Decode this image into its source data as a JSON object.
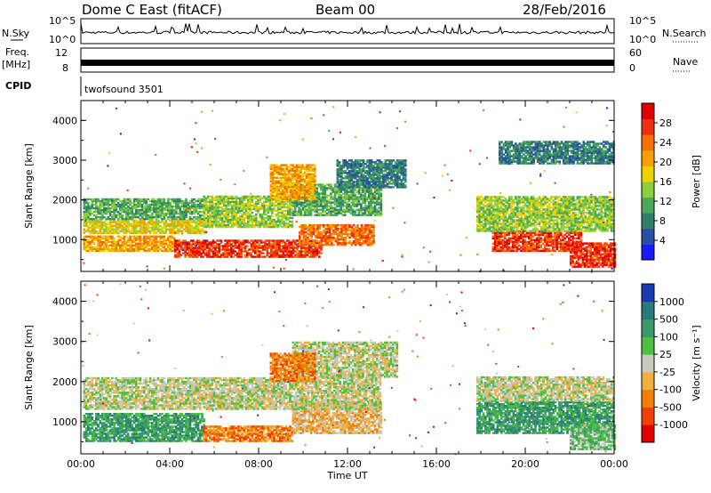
{
  "header": {
    "station": "Dome C East (fitACF)",
    "beam": "Beam 00",
    "date": "28/Feb/2016"
  },
  "strips": {
    "nsky": {
      "label": "N.Sky",
      "top": "10^5",
      "bottom": "10^0"
    },
    "nsearch": {
      "label": "N.Search",
      "top": "10^5",
      "bottom": "10^0"
    },
    "freq": {
      "label_line1": "Freq.",
      "label_line2": "[MHz]",
      "top": "12",
      "bottom": "8"
    },
    "nave": {
      "label": "Nave",
      "top": "60",
      "bottom": "0"
    },
    "cpid": {
      "label": "CPID",
      "value": "twofsound 3501"
    }
  },
  "chart_data": [
    {
      "type": "heatmap",
      "name": "power",
      "ylabel": "Slant Range [km]",
      "ylim": [
        200,
        4500
      ],
      "yticks": [
        "1000",
        "2000",
        "3000",
        "4000"
      ],
      "xlim": [
        0,
        24
      ],
      "colorbar": {
        "label": "Power [dB]",
        "ticks": [
          "4",
          "8",
          "12",
          "16",
          "20",
          "24",
          "28"
        ],
        "colors": [
          "#1a1aff",
          "#2a4fa8",
          "#2f7f6a",
          "#4aa85a",
          "#8ccf3c",
          "#f0d000",
          "#f5a000",
          "#f57000",
          "#f03010",
          "#e00000"
        ]
      },
      "bands": [
        {
          "t0": 0.1,
          "t1": 4.2,
          "r0": 700,
          "r1": 1100,
          "c": 6
        },
        {
          "t0": 4.2,
          "t1": 10.8,
          "r0": 550,
          "r1": 1000,
          "c": 8
        },
        {
          "t0": 9.8,
          "t1": 13.2,
          "r0": 850,
          "r1": 1350,
          "c": 7
        },
        {
          "t0": 0.1,
          "t1": 5.5,
          "r0": 1150,
          "r1": 1500,
          "c": 5
        },
        {
          "t0": 0.1,
          "t1": 5.5,
          "r0": 1500,
          "r1": 2000,
          "c": 3
        },
        {
          "t0": 5.5,
          "t1": 9.5,
          "r0": 1300,
          "r1": 2100,
          "c": 4
        },
        {
          "t0": 9.5,
          "t1": 13.5,
          "r0": 1600,
          "r1": 2400,
          "c": 3
        },
        {
          "t0": 11.5,
          "t1": 14.6,
          "r0": 2300,
          "r1": 3000,
          "c": 2
        },
        {
          "t0": 8.5,
          "t1": 10.5,
          "r0": 2000,
          "r1": 2900,
          "c": 6
        },
        {
          "t0": 18.5,
          "t1": 22.5,
          "r0": 700,
          "r1": 1200,
          "c": 8
        },
        {
          "t0": 17.8,
          "t1": 24.0,
          "r0": 1200,
          "r1": 2100,
          "c": 4
        },
        {
          "t0": 22.0,
          "t1": 24.0,
          "r0": 300,
          "r1": 900,
          "c": 8
        },
        {
          "t0": 18.8,
          "t1": 24.0,
          "r0": 2900,
          "r1": 3450,
          "c": 2
        }
      ]
    },
    {
      "type": "heatmap",
      "name": "velocity",
      "ylabel": "Slant Range [km]",
      "ylim": [
        200,
        4500
      ],
      "yticks": [
        "1000",
        "2000",
        "3000",
        "4000"
      ],
      "xlim": [
        0,
        24
      ],
      "xticks": [
        "00:00",
        "04:00",
        "08:00",
        "12:00",
        "16:00",
        "20:00",
        "00:00"
      ],
      "xlabel": "Time UT",
      "colorbar": {
        "label": "Velocity [m s⁻¹]",
        "ticks": [
          "-1000",
          "-500",
          "-100",
          "-25",
          "25",
          "100",
          "500",
          "1000"
        ],
        "colors": [
          "#e00000",
          "#f04000",
          "#f08000",
          "#f0b040",
          "#c8c8c0",
          "#4cc040",
          "#3a9a6a",
          "#2a7a7a",
          "#1a3ab0"
        ]
      },
      "bands": [
        {
          "t0": 0.1,
          "t1": 5.5,
          "r0": 500,
          "r1": 1200,
          "c": 6
        },
        {
          "t0": 5.5,
          "t1": 9.5,
          "r0": 500,
          "r1": 900,
          "c": 2
        },
        {
          "t0": 9.5,
          "t1": 13.5,
          "r0": 700,
          "r1": 1500,
          "c": 3
        },
        {
          "t0": 0.1,
          "t1": 13.5,
          "r0": 1300,
          "r1": 2100,
          "c": 4
        },
        {
          "t0": 9.5,
          "t1": 14.2,
          "r0": 2100,
          "r1": 3000,
          "c": 4
        },
        {
          "t0": 8.5,
          "t1": 10.5,
          "r0": 2000,
          "r1": 2700,
          "c": 2
        },
        {
          "t0": 17.8,
          "t1": 24.0,
          "r0": 700,
          "r1": 1500,
          "c": 6
        },
        {
          "t0": 17.8,
          "t1": 24.0,
          "r0": 1500,
          "r1": 2100,
          "c": 4
        },
        {
          "t0": 22.0,
          "t1": 24.0,
          "r0": 300,
          "r1": 900,
          "c": 5
        }
      ]
    }
  ]
}
